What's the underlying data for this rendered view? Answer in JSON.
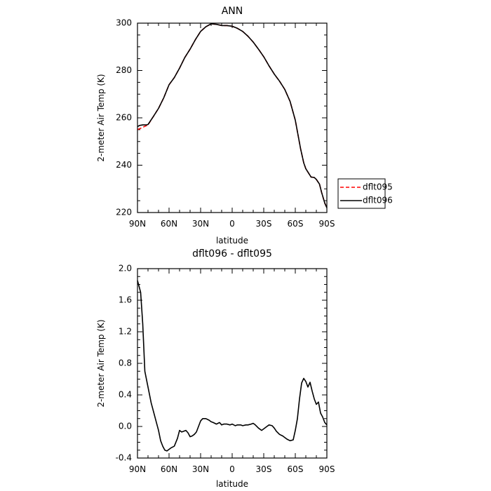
{
  "chart_data": [
    {
      "type": "line",
      "title": "ANN",
      "xlabel": "latitude",
      "ylabel": "2-meter Air Temp (K)",
      "x_ticks": [
        {
          "lat": 90,
          "label": "90N"
        },
        {
          "lat": 60,
          "label": "60N"
        },
        {
          "lat": 30,
          "label": "30N"
        },
        {
          "lat": 0,
          "label": "0"
        },
        {
          "lat": -30,
          "label": "30S"
        },
        {
          "lat": -60,
          "label": "60S"
        },
        {
          "lat": -90,
          "label": "90S"
        }
      ],
      "xlim": [
        90,
        -90
      ],
      "ylim": [
        220,
        300
      ],
      "y_ticks": [
        220,
        240,
        260,
        280,
        300
      ],
      "y_tick_labels": [
        "220",
        "240",
        "260",
        "280",
        "300"
      ],
      "legend": {
        "position": "outside-right-bottom"
      },
      "series": [
        {
          "name": "dflt095",
          "color": "#ff0000",
          "dashed": true,
          "x": [
            90,
            85,
            80,
            75,
            70,
            65,
            60,
            55,
            50,
            45,
            40,
            35,
            30,
            25,
            20,
            15,
            10,
            5,
            0,
            -5,
            -10,
            -15,
            -20,
            -25,
            -30,
            -35,
            -40,
            -45,
            -50,
            -55,
            -60,
            -65,
            -68,
            -70,
            -75,
            -78,
            -80,
            -83,
            -85,
            -88,
            -90
          ],
          "y": [
            255,
            256,
            257,
            260.5,
            264,
            268.5,
            274,
            277,
            281,
            285.5,
            289,
            293,
            296.5,
            298.5,
            299.7,
            299.5,
            299,
            299,
            298.7,
            297.8,
            296.5,
            294.5,
            292,
            289,
            285.8,
            282,
            278.5,
            275.5,
            272,
            267,
            259,
            247,
            241,
            238.5,
            235,
            234.8,
            234,
            232,
            228.5,
            224,
            222
          ]
        },
        {
          "name": "dflt096",
          "color": "#000000",
          "dashed": false,
          "x": [
            90,
            88,
            85,
            82,
            80,
            75,
            70,
            65,
            60,
            55,
            50,
            45,
            40,
            35,
            30,
            25,
            20,
            15,
            10,
            5,
            0,
            -5,
            -10,
            -15,
            -20,
            -25,
            -30,
            -35,
            -40,
            -45,
            -50,
            -55,
            -60,
            -65,
            -68,
            -70,
            -75,
            -78,
            -80,
            -83,
            -85,
            -88,
            -90
          ],
          "y": [
            256.3,
            256.8,
            257,
            257,
            257.2,
            260.5,
            264,
            268.5,
            274,
            277,
            281,
            285.5,
            289,
            293,
            296.5,
            298.5,
            299.7,
            299.5,
            299,
            299,
            298.7,
            297.8,
            296.5,
            294.5,
            292,
            289,
            285.8,
            282,
            278.5,
            275.5,
            272,
            267,
            259,
            247,
            241,
            238.5,
            235,
            234.8,
            234,
            232,
            228.5,
            224,
            222
          ]
        }
      ]
    },
    {
      "type": "line",
      "title": "dflt096 - dflt095",
      "xlabel": "latitude",
      "ylabel": "2-meter Air Temp (K)",
      "x_ticks": [
        {
          "lat": 90,
          "label": "90N"
        },
        {
          "lat": 60,
          "label": "60N"
        },
        {
          "lat": 30,
          "label": "30N"
        },
        {
          "lat": 0,
          "label": "0"
        },
        {
          "lat": -30,
          "label": "30S"
        },
        {
          "lat": -60,
          "label": "60S"
        },
        {
          "lat": -90,
          "label": "90S"
        }
      ],
      "xlim": [
        90,
        -90
      ],
      "ylim": [
        -0.4,
        2.0
      ],
      "y_ticks": [
        -0.4,
        0.0,
        0.4,
        0.8,
        1.2,
        1.6,
        2.0
      ],
      "y_tick_labels": [
        "-0.4",
        "0.0",
        "0.4",
        "0.8",
        "1.2",
        "1.6",
        "2.0"
      ],
      "series": [
        {
          "color": "#000000",
          "dashed": false,
          "x": [
            90,
            89,
            87,
            85,
            83,
            80,
            77,
            75,
            72,
            70,
            68,
            66,
            64,
            62,
            60,
            58,
            55,
            52,
            50,
            48,
            46,
            44,
            42,
            40,
            38,
            36,
            34,
            32,
            30,
            28,
            25,
            22,
            20,
            18,
            15,
            12,
            10,
            8,
            5,
            2,
            0,
            -3,
            -5,
            -8,
            -10,
            -13,
            -15,
            -18,
            -20,
            -22,
            -25,
            -28,
            -30,
            -33,
            -35,
            -38,
            -40,
            -42,
            -45,
            -48,
            -50,
            -52,
            -55,
            -58,
            -60,
            -62,
            -64,
            -66,
            -68,
            -70,
            -72,
            -74,
            -76,
            -78,
            -80,
            -82,
            -84,
            -86,
            -88,
            -90
          ],
          "y": [
            1.85,
            1.8,
            1.7,
            1.3,
            0.7,
            0.5,
            0.3,
            0.2,
            0.05,
            -0.05,
            -0.18,
            -0.25,
            -0.3,
            -0.31,
            -0.29,
            -0.27,
            -0.25,
            -0.15,
            -0.05,
            -0.07,
            -0.06,
            -0.05,
            -0.08,
            -0.13,
            -0.12,
            -0.1,
            -0.07,
            0.0,
            0.07,
            0.1,
            0.1,
            0.08,
            0.06,
            0.05,
            0.03,
            0.05,
            0.02,
            0.03,
            0.03,
            0.02,
            0.03,
            0.01,
            0.02,
            0.02,
            0.01,
            0.02,
            0.02,
            0.03,
            0.04,
            0.02,
            -0.02,
            -0.05,
            -0.03,
            0.0,
            0.02,
            0.01,
            -0.02,
            -0.06,
            -0.1,
            -0.12,
            -0.14,
            -0.16,
            -0.18,
            -0.17,
            -0.05,
            0.1,
            0.35,
            0.55,
            0.61,
            0.57,
            0.5,
            0.56,
            0.45,
            0.35,
            0.28,
            0.31,
            0.17,
            0.12,
            0.05,
            0.02
          ]
        }
      ]
    }
  ]
}
